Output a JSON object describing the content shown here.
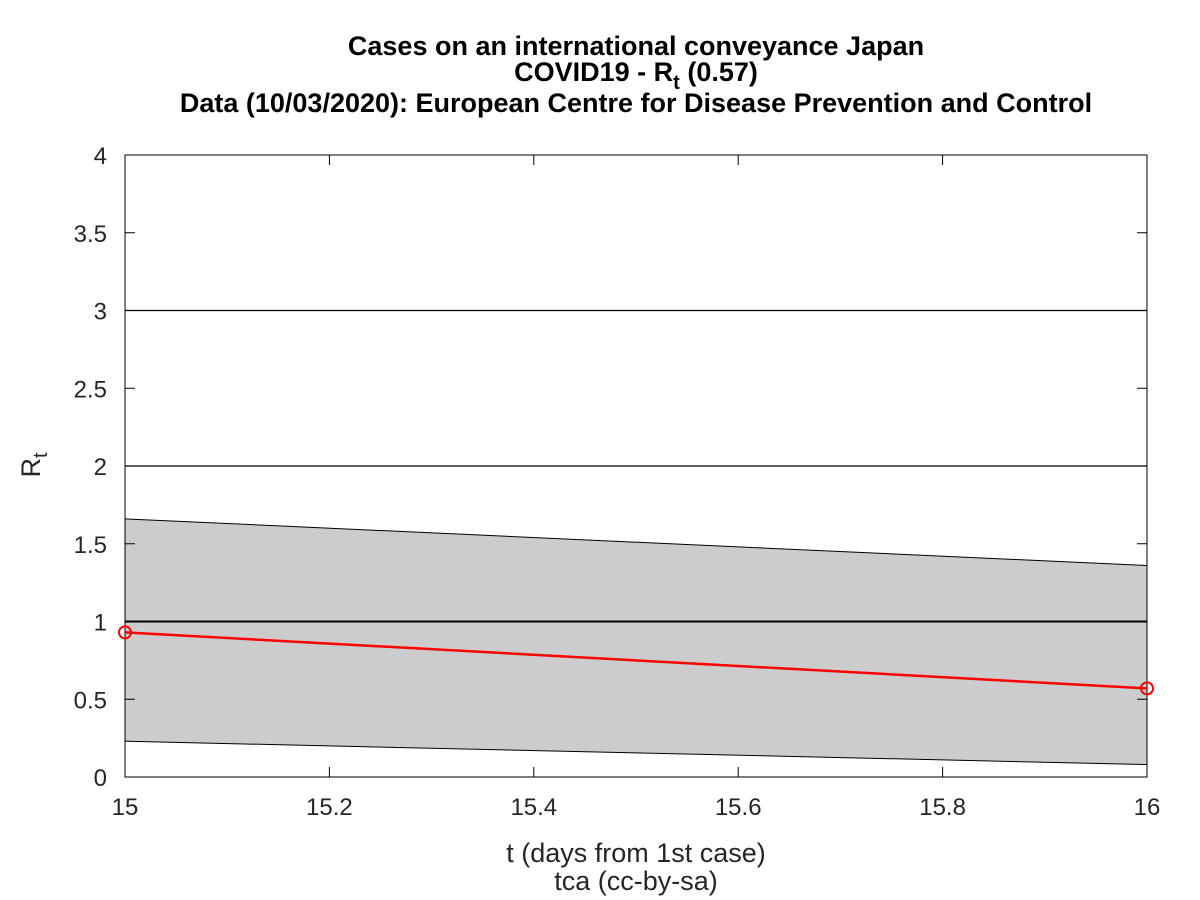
{
  "chart_data": {
    "type": "line",
    "title_lines": {
      "line1": "Cases on an international conveyance Japan",
      "line2_prefix": "COVID19 - R",
      "line2_sub": "t",
      "line2_suffix": " (0.57)",
      "line3": "Data (10/03/2020): European Centre for Disease Prevention and Control"
    },
    "xlabel": "t (days from 1st case)",
    "footer": "tca (cc-by-sa)",
    "ylabel_main": "R",
    "ylabel_sub": "t",
    "xlim": [
      15,
      16
    ],
    "ylim": [
      0,
      4
    ],
    "x_ticks": [
      15,
      15.2,
      15.4,
      15.6,
      15.8,
      16
    ],
    "x_tick_labels": [
      "15",
      "15.2",
      "15.4",
      "15.6",
      "15.8",
      "16"
    ],
    "y_ticks": [
      0,
      0.5,
      1,
      1.5,
      2,
      2.5,
      3,
      3.5,
      4
    ],
    "y_tick_labels": [
      "0",
      "0.5",
      "1",
      "1.5",
      "2",
      "2.5",
      "3",
      "3.5",
      "4"
    ],
    "reference_lines": [
      1,
      2,
      3
    ],
    "series": [
      {
        "x": [
          15,
          16
        ],
        "values": [
          0.93,
          0.57
        ],
        "color": "#ff0000",
        "marker": "circle"
      }
    ],
    "band": {
      "x": [
        15,
        16
      ],
      "lower": [
        0.23,
        0.08
      ],
      "upper": [
        1.66,
        1.36
      ],
      "color": "#cccccc"
    }
  }
}
